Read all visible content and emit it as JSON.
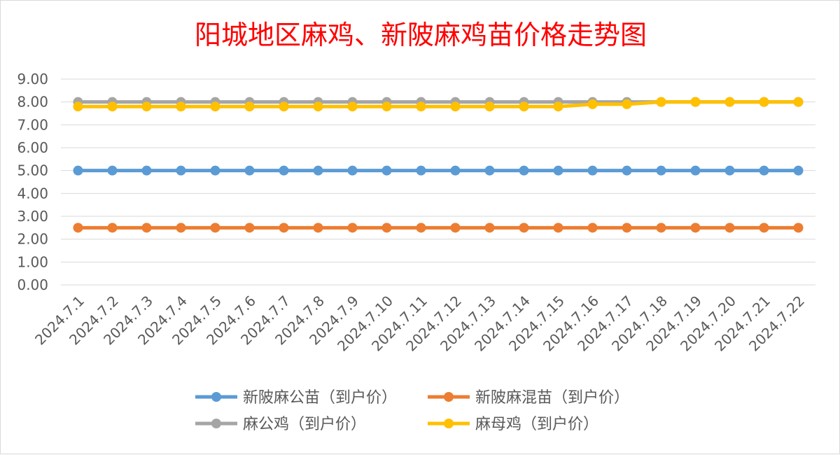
{
  "chart_data": {
    "type": "line",
    "title": "阳城地区麻鸡、新陂麻鸡苗价格走势图",
    "xlabel": "",
    "ylabel": "",
    "ylim": [
      0,
      9
    ],
    "y_ticks": [
      "0.00",
      "1.00",
      "2.00",
      "3.00",
      "4.00",
      "5.00",
      "6.00",
      "7.00",
      "8.00",
      "9.00"
    ],
    "grid": true,
    "legend_position": "bottom",
    "categories": [
      "2024.7.1",
      "2024.7.2",
      "2024.7.3",
      "2024.7.4",
      "2024.7.5",
      "2024.7.6",
      "2024.7.7",
      "2024.7.8",
      "2024.7.9",
      "2024.7.10",
      "2024.7.11",
      "2024.7.12",
      "2024.7.13",
      "2024.7.14",
      "2024.7.15",
      "2024.7.16",
      "2024.7.17",
      "2024.7.18",
      "2024.7.19",
      "2024.7.20",
      "2024.7.21",
      "2024.7.22"
    ],
    "series": [
      {
        "name": "新陂麻公苗（到户价）",
        "color": "#5B9BD5",
        "values": [
          5,
          5,
          5,
          5,
          5,
          5,
          5,
          5,
          5,
          5,
          5,
          5,
          5,
          5,
          5,
          5,
          5,
          5,
          5,
          5,
          5,
          5
        ]
      },
      {
        "name": "新陂麻混苗（到户价）",
        "color": "#ED7D31",
        "values": [
          2.5,
          2.5,
          2.5,
          2.5,
          2.5,
          2.5,
          2.5,
          2.5,
          2.5,
          2.5,
          2.5,
          2.5,
          2.5,
          2.5,
          2.5,
          2.5,
          2.5,
          2.5,
          2.5,
          2.5,
          2.5,
          2.5
        ]
      },
      {
        "name": "麻公鸡（到户价）",
        "color": "#A5A5A5",
        "values": [
          8,
          8,
          8,
          8,
          8,
          8,
          8,
          8,
          8,
          8,
          8,
          8,
          8,
          8,
          8,
          8,
          8,
          8,
          8,
          8,
          8,
          8
        ]
      },
      {
        "name": "麻母鸡（到户价）",
        "color": "#FFC000",
        "values": [
          7.8,
          7.8,
          7.8,
          7.8,
          7.8,
          7.8,
          7.8,
          7.8,
          7.8,
          7.8,
          7.8,
          7.8,
          7.8,
          7.8,
          7.8,
          7.9,
          7.9,
          8,
          8,
          8,
          8,
          8
        ]
      }
    ],
    "title_color": "#FF0000",
    "axis_text_color": "#595959",
    "gridline_color": "#D9D9D9"
  }
}
